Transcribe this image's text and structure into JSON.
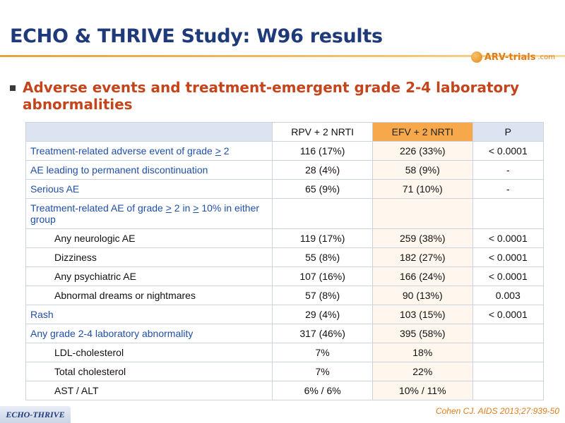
{
  "slide": {
    "title": "ECHO & THRIVE Study: W96 results",
    "bullet": "Adverse events and treatment-emergent grade 2-4 laboratory abnormalities",
    "logo_text": "ARV-trials",
    "logo_suffix": ".com",
    "reference": "Cohen CJ. AIDS 2013;27:939-50",
    "footer_tag": "ECHO-THRIVE"
  },
  "table": {
    "headers": [
      "",
      "RPV + 2 NRTI",
      "EFV + 2 NRTI",
      "P"
    ],
    "rows": [
      {
        "label": "Treatment-related adverse event of grade > 2",
        "indent": false,
        "rpv": "116 (17%)",
        "efv": "226 (33%)",
        "p": "< 0.0001"
      },
      {
        "label": "AE leading to permanent discontinuation",
        "indent": false,
        "rpv": "28 (4%)",
        "efv": "58 (9%)",
        "p": "-"
      },
      {
        "label": "Serious AE",
        "indent": false,
        "rpv": "65 (9%)",
        "efv": "71 (10%)",
        "p": "-"
      },
      {
        "label": "Treatment-related AE of grade > 2 in > 10% in either group",
        "indent": false,
        "rpv": "",
        "efv": "",
        "p": ""
      },
      {
        "label": "Any neurologic AE",
        "indent": true,
        "rpv": "119 (17%)",
        "efv": "259 (38%)",
        "p": "< 0.0001"
      },
      {
        "label": "Dizziness",
        "indent": true,
        "rpv": "55 (8%)",
        "efv": "182 (27%)",
        "p": "< 0.0001"
      },
      {
        "label": "Any psychiatric AE",
        "indent": true,
        "rpv": "107 (16%)",
        "efv": "166 (24%)",
        "p": "< 0.0001"
      },
      {
        "label": "Abnormal dreams or nightmares",
        "indent": true,
        "rpv": "57 (8%)",
        "efv": "90 (13%)",
        "p": "0.003"
      },
      {
        "label": "Rash",
        "indent": false,
        "rpv": "29 (4%)",
        "efv": "103 (15%)",
        "p": "< 0.0001"
      },
      {
        "label": "Any grade 2-4 laboratory abnormality",
        "indent": false,
        "rpv": "317 (46%)",
        "efv": "395 (58%)",
        "p": ""
      },
      {
        "label": "LDL-cholesterol",
        "indent": true,
        "rpv": "7%",
        "efv": "18%",
        "p": ""
      },
      {
        "label": "Total cholesterol",
        "indent": true,
        "rpv": "7%",
        "efv": "22%",
        "p": ""
      },
      {
        "label": "AST / ALT",
        "indent": true,
        "rpv": "6% / 6%",
        "efv": "10% / 11%",
        "p": ""
      }
    ]
  },
  "colors": {
    "title": "#1f3a7a",
    "bullet": "#c4451c",
    "efv_header": "#f6a84a",
    "header_bg": "#dbe4f0",
    "label_blue": "#1f4fa8",
    "reference": "#e07c1a"
  }
}
